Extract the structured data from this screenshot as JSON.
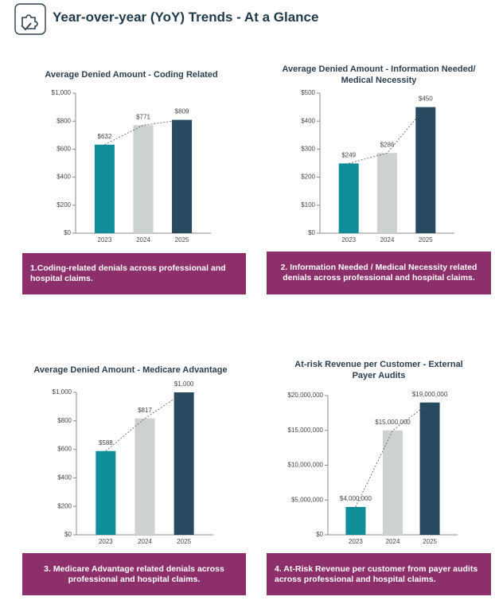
{
  "header": {
    "title": "Year-over-year (YoY) Trends - At a Glance"
  },
  "chart_data": [
    {
      "type": "bar",
      "title": "Average Denied Amount - Coding Related",
      "categories": [
        "2023",
        "2024",
        "2025"
      ],
      "values": [
        632,
        771,
        809
      ],
      "value_labels": [
        "$632",
        "$771",
        "$809"
      ],
      "colors": [
        "#0f8e99",
        "#ccd1d1",
        "#284a60"
      ],
      "ylim": [
        0,
        1000
      ],
      "yticks": [
        {
          "value": 0,
          "label": "$0"
        },
        {
          "value": 200,
          "label": "$200"
        },
        {
          "value": 400,
          "label": "$400"
        },
        {
          "value": 600,
          "label": "$600"
        },
        {
          "value": 800,
          "label": "$800"
        },
        {
          "value": 1000,
          "label": "$1,000"
        }
      ],
      "grid": false,
      "caption": "1.Coding-related denials across professional and hospital claims."
    },
    {
      "type": "bar",
      "title": "Average Denied Amount - Information Needed/ Medical Necessity",
      "categories": [
        "2023",
        "2024",
        "2025"
      ],
      "values": [
        249,
        286,
        450
      ],
      "value_labels": [
        "$249",
        "$286",
        "$450"
      ],
      "colors": [
        "#0f8e99",
        "#ccd1d1",
        "#284a60"
      ],
      "ylim": [
        0,
        500
      ],
      "yticks": [
        {
          "value": 0,
          "label": "$0"
        },
        {
          "value": 100,
          "label": "$100"
        },
        {
          "value": 200,
          "label": "$200"
        },
        {
          "value": 300,
          "label": "$300"
        },
        {
          "value": 400,
          "label": "$400"
        },
        {
          "value": 500,
          "label": "$500"
        }
      ],
      "grid": false,
      "caption": "2. Information Needed / Medical Necessity related denials across professional and hospital claims."
    },
    {
      "type": "bar",
      "title": "Average Denied Amount - Medicare Advantage",
      "categories": [
        "2023",
        "2024",
        "2025"
      ],
      "values": [
        588,
        817,
        1000
      ],
      "value_labels": [
        "$588",
        "$817",
        "$1,000"
      ],
      "colors": [
        "#0f8e99",
        "#ccd1d1",
        "#284a60"
      ],
      "ylim": [
        0,
        1000
      ],
      "yticks": [
        {
          "value": 0,
          "label": "$0"
        },
        {
          "value": 200,
          "label": "$200"
        },
        {
          "value": 400,
          "label": "$400"
        },
        {
          "value": 600,
          "label": "$600"
        },
        {
          "value": 800,
          "label": "$800"
        },
        {
          "value": 1000,
          "label": "$1,000"
        }
      ],
      "grid": false,
      "caption": "3. Medicare Advantage related denials across professional and hospital claims."
    },
    {
      "type": "bar",
      "title": "At-risk Revenue per Customer - External Payer Audits",
      "categories": [
        "2023",
        "2024",
        "2025"
      ],
      "values": [
        4000000,
        15000000,
        19000000
      ],
      "value_labels": [
        "$4,000,000",
        "$15,000,000",
        "$19,000,000"
      ],
      "colors": [
        "#0f8e99",
        "#ccd1d1",
        "#284a60"
      ],
      "ylim": [
        0,
        20000000
      ],
      "yticks": [
        {
          "value": 0,
          "label": "$0"
        },
        {
          "value": 5000000,
          "label": "$5,000,000"
        },
        {
          "value": 10000000,
          "label": "$10,000,000"
        },
        {
          "value": 15000000,
          "label": "$15,000,000"
        },
        {
          "value": 20000000,
          "label": "$20,000,000"
        }
      ],
      "grid": false,
      "caption": "4. At-Risk Revenue per customer from payer audits across professional and hospital claims."
    }
  ]
}
